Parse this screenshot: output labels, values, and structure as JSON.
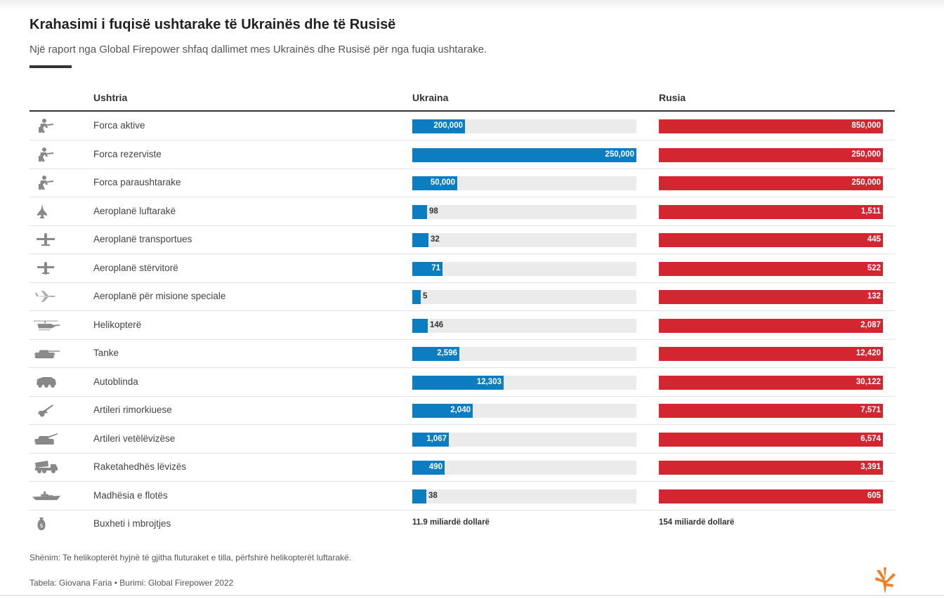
{
  "header": {
    "title": "Krahasimi i fuqisë ushtarake të Ukrainës dhe të Rusisë",
    "subtitle": "Një raport nga Global Firepower shfaq dallimet mes Ukrainës dhe Rusisë për nga fuqia ushtarake."
  },
  "table": {
    "col_military": "Ushtria",
    "col_ukraine": "Ukraina",
    "col_russia": "Rusia"
  },
  "colors": {
    "ukraine": "#0b7dc0",
    "russia": "#d32631",
    "track": "#ebebeb",
    "icon": "#888888"
  },
  "chart_data": {
    "type": "table",
    "scale": "bar length relative to the larger value of each row",
    "series": [
      {
        "name": "Ukraina"
      },
      {
        "name": "Rusia"
      }
    ],
    "rows": [
      {
        "label": "Forca aktive",
        "icon": "soldier-icon",
        "ukraine": 200000,
        "ukraine_text": "200,000",
        "russia": 850000,
        "russia_text": "850,000"
      },
      {
        "label": "Forca rezerviste",
        "icon": "soldier-icon",
        "ukraine": 250000,
        "ukraine_text": "250,000",
        "russia": 250000,
        "russia_text": "250,000"
      },
      {
        "label": "Forca paraushtarake",
        "icon": "soldier-icon",
        "ukraine": 50000,
        "ukraine_text": "50,000",
        "russia": 250000,
        "russia_text": "250,000"
      },
      {
        "label": "Aeroplanë luftarakë",
        "icon": "fighter-jet-icon",
        "ukraine": 98,
        "ukraine_text": "98",
        "russia": 1511,
        "russia_text": "1,511"
      },
      {
        "label": "Aeroplanë transportues",
        "icon": "transport-plane-icon",
        "ukraine": 32,
        "ukraine_text": "32",
        "russia": 445,
        "russia_text": "445"
      },
      {
        "label": "Aeroplanë stërvitorë",
        "icon": "trainer-plane-icon",
        "ukraine": 71,
        "ukraine_text": "71",
        "russia": 522,
        "russia_text": "522"
      },
      {
        "label": "Aeroplanë për misione speciale",
        "icon": "special-mission-plane-icon",
        "ukraine": 5,
        "ukraine_text": "5",
        "russia": 132,
        "russia_text": "132"
      },
      {
        "label": "Helikopterë",
        "icon": "helicopter-icon",
        "ukraine": 146,
        "ukraine_text": "146",
        "russia": 2087,
        "russia_text": "2,087"
      },
      {
        "label": "Tanke",
        "icon": "tank-icon",
        "ukraine": 2596,
        "ukraine_text": "2,596",
        "russia": 12420,
        "russia_text": "12,420"
      },
      {
        "label": "Autoblinda",
        "icon": "armored-vehicle-icon",
        "ukraine": 12303,
        "ukraine_text": "12,303",
        "russia": 30122,
        "russia_text": "30,122"
      },
      {
        "label": "Artileri rimorkiuese",
        "icon": "towed-artillery-icon",
        "ukraine": 2040,
        "ukraine_text": "2,040",
        "russia": 7571,
        "russia_text": "7,571"
      },
      {
        "label": "Artileri vetëlëvizëse",
        "icon": "self-propelled-artillery-icon",
        "ukraine": 1067,
        "ukraine_text": "1,067",
        "russia": 6574,
        "russia_text": "6,574"
      },
      {
        "label": "Raketahedhës lëvizës",
        "icon": "rocket-launcher-icon",
        "ukraine": 490,
        "ukraine_text": "490",
        "russia": 3391,
        "russia_text": "3,391"
      },
      {
        "label": "Madhësia e flotës",
        "icon": "warship-icon",
        "ukraine": 38,
        "ukraine_text": "38",
        "russia": 605,
        "russia_text": "605"
      },
      {
        "label": "Buxheti i mbrojtjes",
        "icon": "money-bag-icon",
        "ukraine": 11.9,
        "ukraine_text": "11.9 miliardë dollarë",
        "russia": 154,
        "russia_text": "154 miliardë dollarë",
        "unit": "miliardë dollarë",
        "no_bar": true
      }
    ]
  },
  "footer": {
    "note": "Shënim: Te helikopterët hyjnë të gjitha fluturaket e tilla, përfshirë helikopterët luftarakë.",
    "source": "Tabela: Giovana Faria • Burimi: Global Firepower 2022",
    "logo_icon": "rferl-logo-icon"
  }
}
